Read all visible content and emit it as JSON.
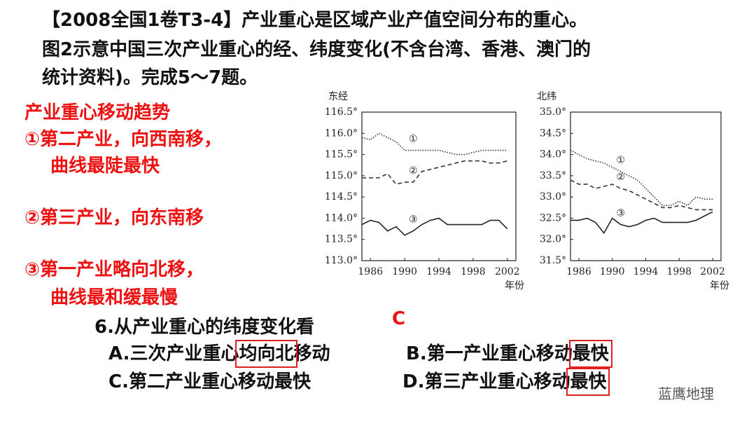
{
  "header": {
    "lines": [
      "【2008全国1卷T3-4】产业重心是区域产业产值空间分布的重心。",
      "图2示意中国三次产业重心的经、纬度变化(不含台湾、香港、澳门的",
      "统计资料)。完成5～7题。"
    ]
  },
  "notes": {
    "title": "产业重心移动趋势",
    "lines": [
      "①第二产业，向西南移，",
      "曲线最陡最快",
      "②第三产业，向东南移",
      "③第一产业略向北移，",
      "曲线最和缓最慢"
    ]
  },
  "question": {
    "stem": "6.从产业重心的纬度变化看",
    "answer": "C",
    "options": {
      "a": [
        "A.三次产业重心",
        "均向北",
        "移动"
      ],
      "b": [
        "B.第一产业重心移动",
        "最快"
      ],
      "c": [
        "C.第二产业重心移动最快"
      ],
      "d": [
        "D.第三产业重心移动",
        "最快"
      ]
    }
  },
  "watermark": "蓝鹰地理",
  "chart_data": [
    {
      "type": "line",
      "y_label": "东经",
      "x_label": "年份",
      "x": [
        1985,
        1986,
        1987,
        1988,
        1989,
        1990,
        1991,
        1992,
        1993,
        1994,
        1995,
        1996,
        1997,
        1998,
        1999,
        2000,
        2001,
        2002
      ],
      "xlim": [
        1985,
        2003
      ],
      "xticks": [
        1986,
        1990,
        1994,
        1998,
        2002
      ],
      "ylim": [
        113.0,
        116.5
      ],
      "yticks": [
        {
          "value": 113.0,
          "label": "113.0°"
        },
        {
          "value": 113.5,
          "label": "113.5°"
        },
        {
          "value": 114.0,
          "label": "114.0°"
        },
        {
          "value": 114.5,
          "label": "114.5°"
        },
        {
          "value": 115.0,
          "label": "115.0°"
        },
        {
          "value": 115.5,
          "label": "115.5°"
        },
        {
          "value": 116.0,
          "label": "116.0°"
        },
        {
          "value": 116.5,
          "label": "116.5°"
        }
      ],
      "series": [
        {
          "name": "①",
          "color": "#333333",
          "style": "dotted",
          "values": [
            115.9,
            115.85,
            116.0,
            115.9,
            115.8,
            115.6,
            115.6,
            115.6,
            115.6,
            115.6,
            115.55,
            115.5,
            115.5,
            115.55,
            115.6,
            115.6,
            115.6,
            115.6
          ]
        },
        {
          "name": "②",
          "color": "#333333",
          "style": "dashed",
          "values": [
            114.95,
            114.95,
            114.95,
            115.05,
            114.8,
            114.85,
            114.85,
            115.1,
            115.15,
            115.2,
            115.25,
            115.3,
            115.35,
            115.35,
            115.35,
            115.3,
            115.3,
            115.35
          ]
        },
        {
          "name": "③",
          "color": "#222222",
          "style": "solid",
          "values": [
            113.85,
            113.95,
            113.9,
            113.7,
            113.8,
            113.6,
            113.7,
            113.85,
            113.95,
            114.0,
            113.85,
            113.85,
            113.85,
            113.85,
            113.85,
            113.95,
            113.95,
            113.75
          ]
        }
      ]
    },
    {
      "type": "line",
      "y_label": "北纬",
      "x_label": "年份",
      "x": [
        1985,
        1986,
        1987,
        1988,
        1989,
        1990,
        1991,
        1992,
        1993,
        1994,
        1995,
        1996,
        1997,
        1998,
        1999,
        2000,
        2001,
        2002
      ],
      "xlim": [
        1985,
        2003
      ],
      "xticks": [
        1986,
        1990,
        1994,
        1998,
        2002
      ],
      "ylim": [
        31.5,
        35.0
      ],
      "yticks": [
        {
          "value": 31.5,
          "label": "31.5°"
        },
        {
          "value": 32.0,
          "label": "32.0°"
        },
        {
          "value": 32.5,
          "label": "32.5°"
        },
        {
          "value": 33.0,
          "label": "33.0°"
        },
        {
          "value": 33.5,
          "label": "33.5°"
        },
        {
          "value": 34.0,
          "label": "34.0°"
        },
        {
          "value": 34.5,
          "label": "34.5°"
        },
        {
          "value": 35.0,
          "label": "35.0°"
        }
      ],
      "series": [
        {
          "name": "①",
          "color": "#333333",
          "style": "dotted",
          "values": [
            34.1,
            34.0,
            33.9,
            33.85,
            33.8,
            33.7,
            33.6,
            33.5,
            33.4,
            33.2,
            33.0,
            32.8,
            32.8,
            32.9,
            32.8,
            33.0,
            32.95,
            32.95
          ]
        },
        {
          "name": "②",
          "color": "#333333",
          "style": "dashed",
          "values": [
            33.4,
            33.3,
            33.3,
            33.2,
            33.25,
            33.3,
            33.2,
            33.15,
            33.05,
            32.95,
            32.85,
            32.75,
            32.75,
            32.8,
            32.75,
            32.7,
            32.7,
            32.7
          ]
        },
        {
          "name": "③",
          "color": "#222222",
          "style": "solid",
          "values": [
            32.45,
            32.45,
            32.5,
            32.4,
            32.15,
            32.5,
            32.35,
            32.3,
            32.35,
            32.45,
            32.5,
            32.4,
            32.4,
            32.4,
            32.4,
            32.45,
            32.55,
            32.65
          ]
        }
      ]
    }
  ]
}
